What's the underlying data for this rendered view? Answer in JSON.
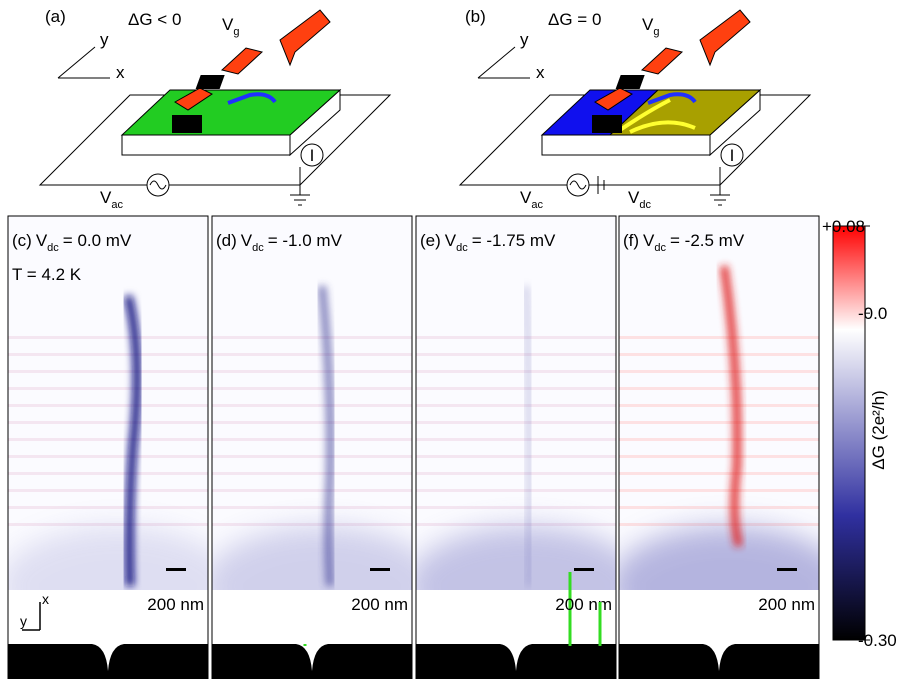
{
  "diagrams": [
    {
      "label": "(a)",
      "condition": "ΔG < 0",
      "gate": {
        "symbol": "V",
        "subscript": "g"
      },
      "axis_y": "y",
      "axis_x": "x",
      "current": "I",
      "sources": [
        {
          "symbol": "V",
          "subscript": "ac"
        }
      ]
    },
    {
      "label": "(b)",
      "condition": "ΔG = 0",
      "gate": {
        "symbol": "V",
        "subscript": "g"
      },
      "axis_y": "y",
      "axis_x": "x",
      "current": "I",
      "sources": [
        {
          "symbol": "V",
          "subscript": "ac"
        },
        {
          "symbol": "V",
          "subscript": "dc"
        }
      ]
    }
  ],
  "maps": [
    {
      "label": "(c)",
      "bias": {
        "symbol": "V",
        "subscript": "dc",
        "value": "= 0.0 mV"
      },
      "temperature": "T = 4.2 K",
      "scale_bar": "200 nm"
    },
    {
      "label": "(d)",
      "bias": {
        "symbol": "V",
        "subscript": "dc",
        "value": "= -1.0 mV"
      },
      "scale_bar": "200 nm"
    },
    {
      "label": "(e)",
      "bias": {
        "symbol": "V",
        "subscript": "dc",
        "value": "= -1.75 mV"
      },
      "scale_bar": "200 nm"
    },
    {
      "label": "(f)",
      "bias": {
        "symbol": "V",
        "subscript": "dc",
        "value": "= -2.5 mV"
      },
      "scale_bar": "200 nm"
    }
  ],
  "inset_axes": {
    "x": "x",
    "y": "y"
  },
  "colorbar": {
    "label": "ΔG (2e²/h)",
    "range": [
      -0.3,
      0.08
    ],
    "ticks": [
      {
        "value": 0.08,
        "label": "+0.08"
      },
      {
        "value": 0,
        "label": "-0.0"
      },
      {
        "value": -0.3,
        "label": "-0.30"
      }
    ]
  }
}
